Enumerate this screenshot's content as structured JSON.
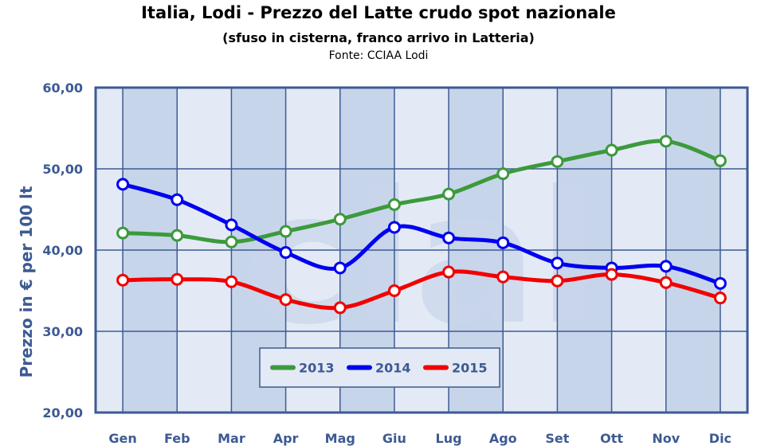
{
  "chart_data": {
    "type": "line",
    "title": "Italia, Lodi - Prezzo del Latte crudo spot nazionale",
    "subtitle": "(sfuso in cisterna, franco arrivo in Latteria)",
    "source": "Fonte: CCIAA Lodi",
    "ylabel": "Prezzo in € per 100 lt",
    "xlabel": "",
    "watermark": "clal",
    "categories": [
      "Gen",
      "Feb",
      "Mar",
      "Apr",
      "Mag",
      "Giu",
      "Lug",
      "Ago",
      "Set",
      "Ott",
      "Nov",
      "Dic"
    ],
    "ylim": [
      20,
      60
    ],
    "yticks": [
      "20,00",
      "30,00",
      "40,00",
      "50,00",
      "60,00"
    ],
    "grid": true,
    "legend_position": "bottom-center",
    "series": [
      {
        "name": "2013",
        "color": "#3c9a3c",
        "values": [
          42.1,
          41.8,
          41.0,
          42.3,
          43.8,
          45.6,
          46.9,
          49.4,
          50.9,
          52.3,
          53.4,
          51.0
        ]
      },
      {
        "name": "2014",
        "color": "#0000f0",
        "values": [
          48.1,
          46.2,
          43.1,
          39.7,
          37.8,
          42.8,
          41.5,
          40.9,
          38.4,
          37.8,
          38.0,
          35.9
        ]
      },
      {
        "name": "2015",
        "color": "#f20000",
        "values": [
          36.3,
          36.4,
          36.1,
          33.9,
          32.9,
          35.0,
          37.3,
          36.7,
          36.2,
          37.0,
          36.0,
          34.1
        ]
      }
    ]
  }
}
